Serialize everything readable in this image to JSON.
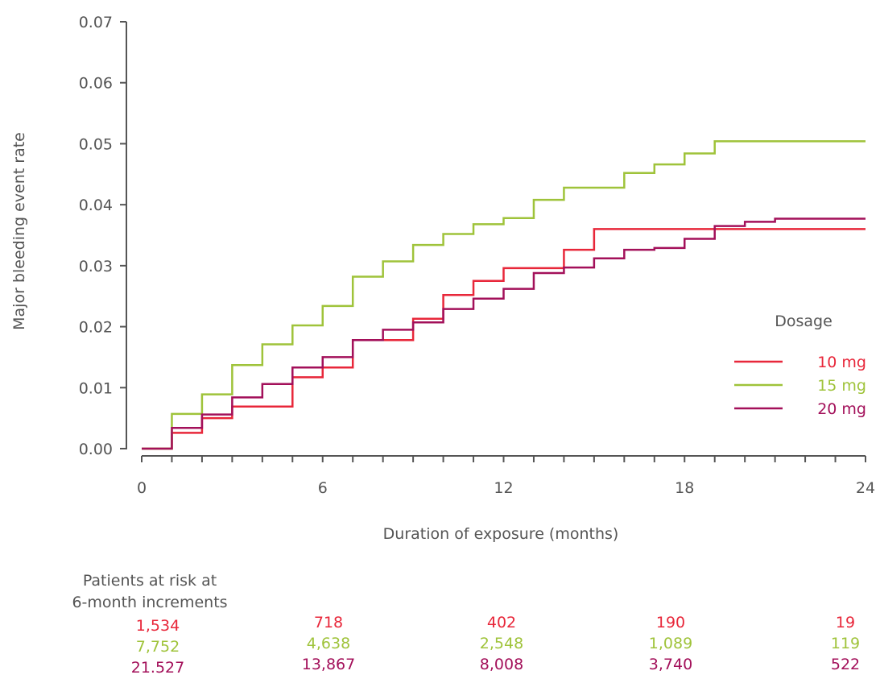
{
  "chart_data": {
    "type": "line",
    "step": true,
    "xlabel": "Duration of exposure (months)",
    "ylabel": "Major bleeding event rate",
    "xlim": [
      0,
      24
    ],
    "ylim": [
      0,
      0.07
    ],
    "xticks": [
      0,
      6,
      12,
      18,
      24
    ],
    "xtick_labels": [
      "0",
      "6",
      "12",
      "18",
      "24"
    ],
    "yticks": [
      0,
      0.01,
      0.02,
      0.03,
      0.04,
      0.05,
      0.06,
      0.07
    ],
    "ytick_labels": [
      "0.00",
      "0.01",
      "0.02",
      "0.03",
      "0.04",
      "0.05",
      "0.06",
      "0.07"
    ],
    "minor_x_ticks_every": 1,
    "grid": false,
    "legend": {
      "title": "Dosage",
      "position": "right",
      "entries": [
        "10 mg",
        "15 mg",
        "20 mg"
      ]
    },
    "series": [
      {
        "name": "10 mg",
        "color": "#e8273a",
        "x": [
          0,
          1,
          2,
          3,
          5,
          6,
          7,
          9,
          10,
          11,
          12,
          14,
          15,
          24
        ],
        "y": [
          0,
          0.0026,
          0.005,
          0.0069,
          0.0117,
          0.0133,
          0.0178,
          0.0213,
          0.0252,
          0.0275,
          0.0296,
          0.0326,
          0.036,
          0.036
        ]
      },
      {
        "name": "15 mg",
        "color": "#9fc33a",
        "x": [
          0,
          1,
          2,
          3,
          4,
          5,
          6,
          7,
          8,
          9,
          10,
          11,
          12,
          13,
          14,
          16,
          17,
          18,
          19,
          24
        ],
        "y": [
          0,
          0.0057,
          0.0089,
          0.0137,
          0.0171,
          0.0202,
          0.0234,
          0.0282,
          0.0307,
          0.0334,
          0.0352,
          0.0368,
          0.0378,
          0.0408,
          0.0428,
          0.0452,
          0.0466,
          0.0484,
          0.0504,
          0.0504
        ]
      },
      {
        "name": "20 mg",
        "color": "#a3105a",
        "x": [
          0,
          1,
          2,
          3,
          4,
          5,
          6,
          7,
          8,
          9,
          10,
          11,
          12,
          13,
          14,
          15,
          16,
          17,
          18,
          19,
          20,
          21,
          24
        ],
        "y": [
          0,
          0.0034,
          0.0056,
          0.0084,
          0.0106,
          0.0133,
          0.015,
          0.0178,
          0.0195,
          0.0207,
          0.0229,
          0.0246,
          0.0262,
          0.0288,
          0.0297,
          0.0312,
          0.0326,
          0.0329,
          0.0344,
          0.0365,
          0.0372,
          0.0377,
          0.0377
        ]
      }
    ],
    "risk_table": {
      "title_line1": "Patients at risk at",
      "title_line2": "6-month increments",
      "months": [
        0,
        6,
        12,
        18,
        24
      ],
      "rows": [
        {
          "series": "10 mg",
          "color": "#e8273a",
          "values": [
            "1,534",
            "718",
            "402",
            "190",
            "19"
          ]
        },
        {
          "series": "15 mg",
          "color": "#9fc33a",
          "values": [
            "7,752",
            "4,638",
            "2,548",
            "1,089",
            "119"
          ]
        },
        {
          "series": "20 mg",
          "color": "#a3105a",
          "values": [
            "21.527",
            "13,867",
            "8,008",
            "3,740",
            "522"
          ]
        }
      ]
    }
  }
}
